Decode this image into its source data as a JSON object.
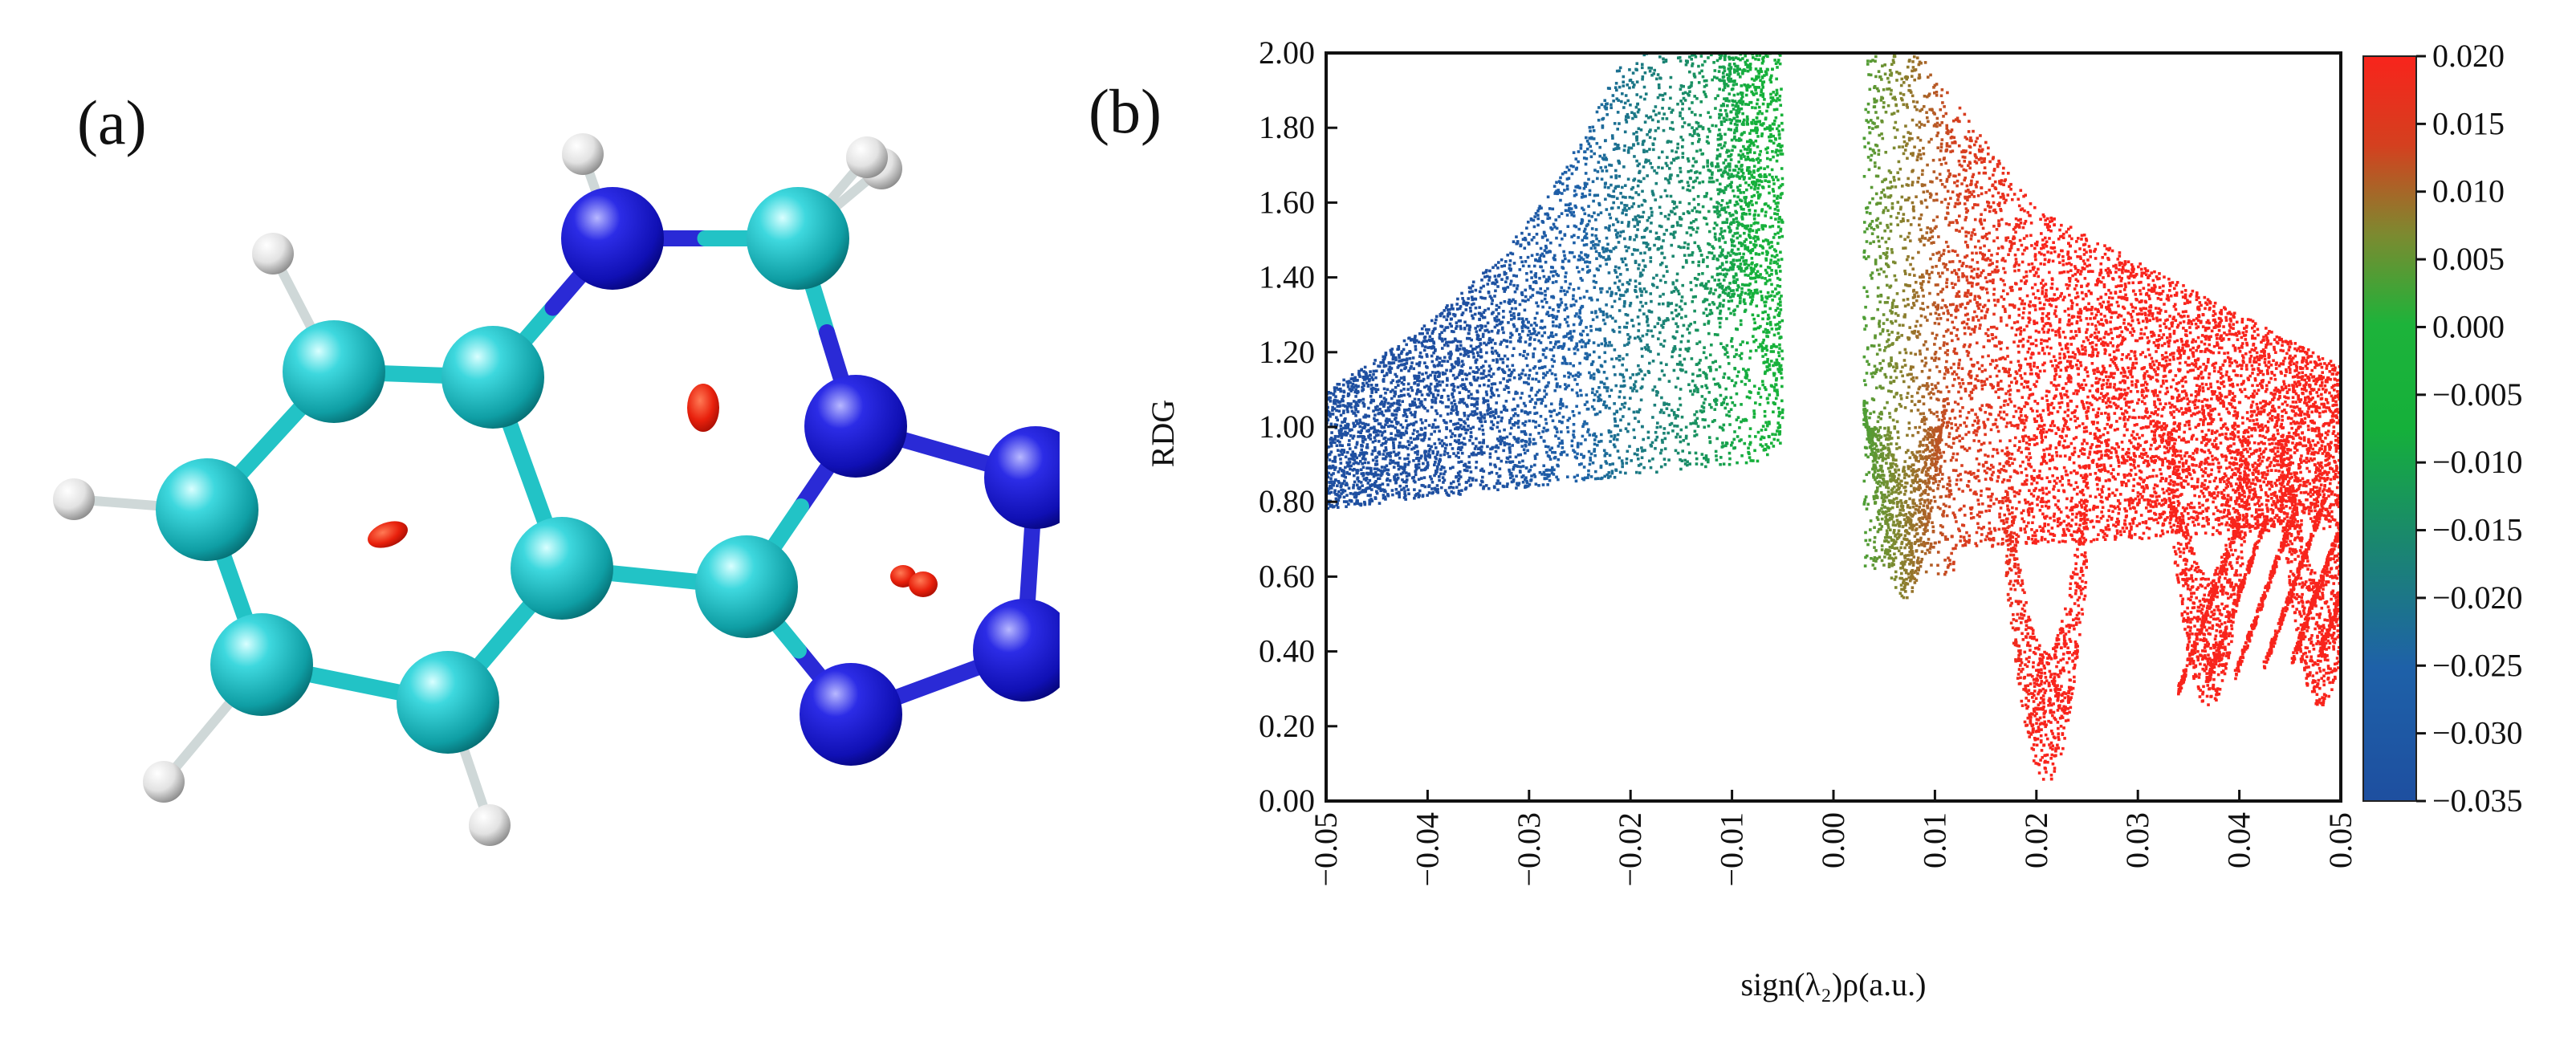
{
  "panels": {
    "a": {
      "label": "(a)"
    },
    "b": {
      "label": "(b)"
    }
  },
  "molecule": {
    "atom_colors": {
      "C": "#1ec2c8",
      "N": "#1515c8",
      "H": "#e8e8e8"
    },
    "bond_colors": {
      "C": "#22c3c6",
      "N": "#2a2ad6"
    },
    "isosurface_color": "#e8200c",
    "atoms": [
      {
        "el": "C",
        "id": "c1"
      },
      {
        "el": "C",
        "id": "c2"
      },
      {
        "el": "C",
        "id": "c3"
      },
      {
        "el": "C",
        "id": "c4"
      },
      {
        "el": "C",
        "id": "c5"
      },
      {
        "el": "C",
        "id": "c6"
      },
      {
        "el": "C",
        "id": "c7"
      },
      {
        "el": "C",
        "id": "c8"
      },
      {
        "el": "N",
        "id": "n1"
      },
      {
        "el": "N",
        "id": "n2"
      },
      {
        "el": "N",
        "id": "n3"
      },
      {
        "el": "N",
        "id": "n4"
      },
      {
        "el": "N",
        "id": "n5"
      },
      {
        "el": "H",
        "id": "h1"
      },
      {
        "el": "H",
        "id": "h2"
      },
      {
        "el": "H",
        "id": "h3"
      },
      {
        "el": "H",
        "id": "h4"
      },
      {
        "el": "H",
        "id": "h5"
      },
      {
        "el": "H",
        "id": "h6"
      },
      {
        "el": "H",
        "id": "h7"
      }
    ],
    "bonds": [
      [
        "c1",
        "c2"
      ],
      [
        "c1",
        "c3"
      ],
      [
        "c3",
        "c4"
      ],
      [
        "c4",
        "c5"
      ],
      [
        "c5",
        "c6"
      ],
      [
        "c6",
        "c2"
      ],
      [
        "c2",
        "n1"
      ],
      [
        "n1",
        "c7"
      ],
      [
        "c7",
        "n2"
      ],
      [
        "n2",
        "c8"
      ],
      [
        "c8",
        "c6"
      ],
      [
        "n2",
        "n3"
      ],
      [
        "n3",
        "n4"
      ],
      [
        "n4",
        "n5"
      ],
      [
        "n5",
        "c8"
      ],
      [
        "c1",
        "h1"
      ],
      [
        "c3",
        "h2"
      ],
      [
        "c4",
        "h3"
      ],
      [
        "c5",
        "h4"
      ],
      [
        "n1",
        "h5"
      ],
      [
        "c7",
        "h6"
      ],
      [
        "c7",
        "h7"
      ]
    ]
  },
  "chart_data": {
    "type": "scatter",
    "title": "",
    "xlabel": "sign(λ₂)ρ(a.u.)",
    "ylabel": "RDG",
    "xlim": [
      -0.05,
      0.05
    ],
    "ylim": [
      0.0,
      2.0
    ],
    "x_ticks": [
      "-0.05",
      "-0.04",
      "-0.03",
      "-0.02",
      "-0.01",
      "0.00",
      "0.01",
      "0.02",
      "0.03",
      "0.04",
      "0.05"
    ],
    "y_ticks": [
      "0.00",
      "0.20",
      "0.40",
      "0.60",
      "0.80",
      "1.00",
      "1.20",
      "1.40",
      "1.60",
      "1.80",
      "2.00"
    ],
    "colorbar": {
      "range": [
        -0.035,
        0.02
      ],
      "ticks": [
        "0.020",
        "0.015",
        "0.010",
        "0.005",
        "0.000",
        "-0.005",
        "-0.010",
        "-0.015",
        "-0.020",
        "-0.025",
        "-0.030",
        "-0.035"
      ],
      "colors": {
        "low": "#1e4fa0",
        "mid": "#1db33a",
        "high": "#f8241c"
      }
    },
    "point_regions": [
      {
        "region": "attractive-wing",
        "x_range": [
          -0.05,
          -0.005
        ],
        "rdg_min_at_x_min": 0.78,
        "rdg_max_at_x_min": 1.1,
        "rdg_min_at_x_max": 0.88,
        "color_range": [
          -0.035,
          -0.005
        ]
      },
      {
        "region": "repulsive-wing",
        "x_range": [
          0.003,
          0.05
        ],
        "rdg_min_at_x_min": 0.55,
        "rdg_max_at_x_min": 2.0,
        "rdg_max_at_x_max": 1.1,
        "color_range": [
          0.0,
          0.02
        ]
      },
      {
        "region": "spike-1",
        "x_center": 0.007,
        "rdg_min": 0.54
      },
      {
        "region": "spike-2",
        "x_center": 0.021,
        "rdg_min": 0.05
      },
      {
        "region": "spike-3",
        "x_center": 0.037,
        "rdg_min": 0.25
      },
      {
        "region": "spike-4",
        "x_center": 0.048,
        "rdg_min": 0.25
      }
    ]
  }
}
